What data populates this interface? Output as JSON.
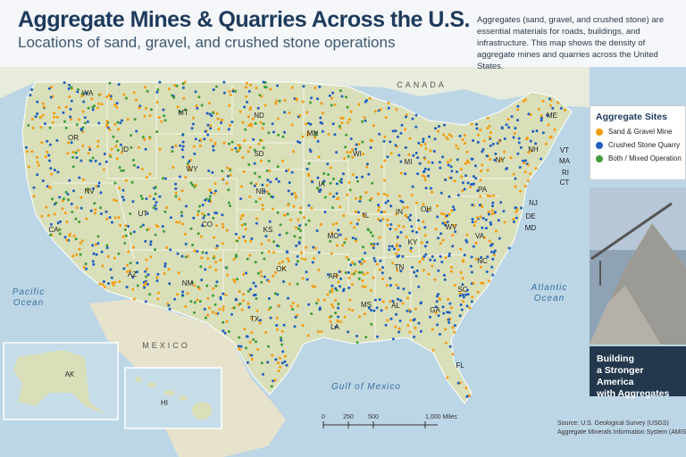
{
  "header": {
    "title": "Aggregate Mines & Quarries Across the U.S.",
    "subtitle": "Locations of sand, gravel, and crushed stone operations",
    "description": "Aggregates (sand, gravel, and crushed stone) are essential materials for roads, buildings, and infrastructure. This map shows the density of aggregate mines and quarries across the United States."
  },
  "legend": {
    "title": "Aggregate Sites",
    "items": [
      {
        "label": "Sand & Gravel Mine",
        "color": "#f39c12"
      },
      {
        "label": "Crushed Stone Quarry",
        "color": "#1f5fbf"
      },
      {
        "label": "Both / Mixed Operation",
        "color": "#3f9e3a"
      }
    ]
  },
  "map": {
    "states": [
      "WA",
      "OR",
      "CA",
      "NV",
      "ID",
      "MT",
      "WY",
      "UT",
      "AZ",
      "CO",
      "NM",
      "ND",
      "SD",
      "NE",
      "KS",
      "OK",
      "TX",
      "MN",
      "IA",
      "MO",
      "AR",
      "LA",
      "WI",
      "IL",
      "MI",
      "IN",
      "OH",
      "KY",
      "TN",
      "MS",
      "AL",
      "GA",
      "FL",
      "SC",
      "NC",
      "VA",
      "WV",
      "PA",
      "NY",
      "ME",
      "NH",
      "VT",
      "MA",
      "RI",
      "CT",
      "NJ",
      "DE",
      "MD",
      "AK",
      "HI"
    ],
    "regions": {
      "canada": "CANADA",
      "mexico": "MEXICO",
      "gulf": "Gulf of Mexico",
      "pacific": [
        "Pacific",
        "Ocean"
      ],
      "atlantic": [
        "Atlantic",
        "Ocean"
      ]
    },
    "scale": [
      "0",
      "250",
      "500",
      "1,000 Miles"
    ]
  },
  "caption": [
    "Building",
    "a Stronger America",
    "with Aggregates"
  ],
  "source": [
    "Source: U.S. Geological Survey (USGS)",
    "Aggregate Minerals Information System (AMIS)"
  ]
}
